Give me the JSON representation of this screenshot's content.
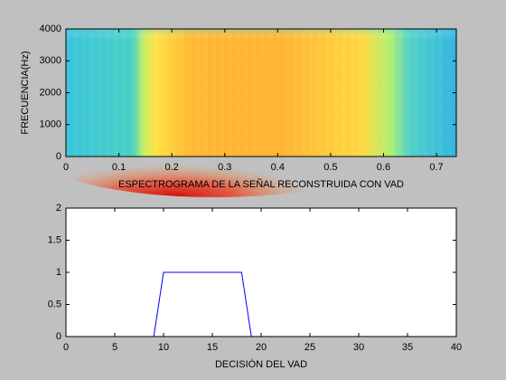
{
  "chart_data": [
    {
      "type": "spectrogram",
      "xlabel": "ESPECTROGRAMA DE LA SEÑAL RECONSTRUIDA CON VAD",
      "ylabel": "FRECUENCIA(Hz)",
      "xlim": [
        0,
        0.7375
      ],
      "xticks": [
        0,
        0.1,
        0.2,
        0.3,
        0.4,
        0.5,
        0.6,
        0.7
      ],
      "ylim": [
        0,
        4000
      ],
      "yticks": [
        0,
        1000,
        2000,
        3000,
        4000
      ]
    },
    {
      "type": "line",
      "xlabel": "DECISIÓN DEL VAD",
      "color": "#0000ff",
      "x": [
        0,
        1,
        2,
        3,
        4,
        5,
        6,
        7,
        8,
        9,
        10,
        11,
        12,
        13,
        14,
        15,
        16,
        17,
        18,
        19,
        20,
        21,
        22,
        23,
        24,
        25,
        26,
        27,
        28,
        29,
        30,
        31,
        32,
        33,
        34,
        35,
        36,
        37,
        38,
        39,
        40
      ],
      "values": [
        0,
        0,
        0,
        0,
        0,
        0,
        0,
        0,
        0,
        0,
        1,
        1,
        1,
        1,
        1,
        1,
        1,
        1,
        1,
        0,
        0,
        0,
        0,
        0,
        0,
        0,
        0,
        0,
        0,
        0,
        0,
        0,
        0,
        0,
        0,
        0,
        0,
        0,
        0,
        0,
        0
      ],
      "xlim": [
        0,
        40
      ],
      "xticks": [
        0,
        5,
        10,
        15,
        20,
        25,
        30,
        35,
        40
      ],
      "ylim": [
        0,
        2
      ],
      "yticks": [
        0,
        0.5,
        1,
        1.5,
        2
      ]
    }
  ]
}
